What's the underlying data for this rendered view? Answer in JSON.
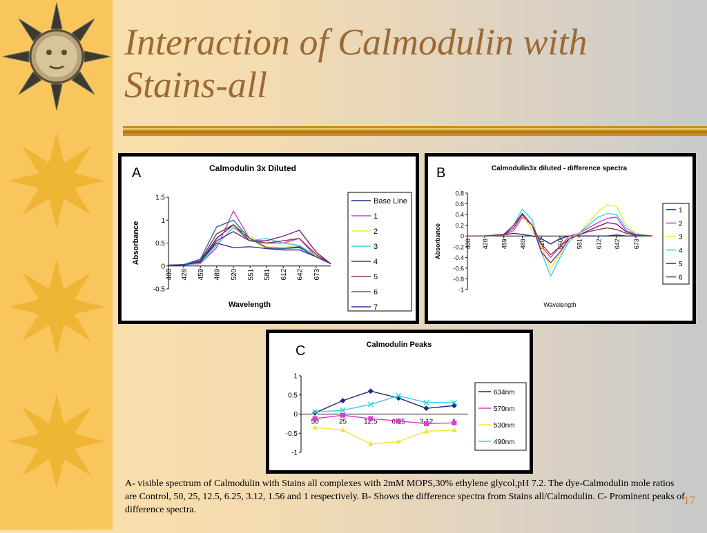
{
  "slide": {
    "title": "Interaction of Calmodulin with Stains-all",
    "caption": "A- visible spectrum of Calmodulin with Stains all complexes with 2mM MOPS,30% ethylene glycol,pH 7.2. The dye-Calmodulin mole ratios are Control, 50, 25, 12.5, 6.25, 3.12, 1.56 and 1 respectively. B- Shows the difference spectra from Stains all/Calmodulin. C- Prominent peaks of difference spectra.",
    "page_number": "17",
    "decoration_icon": "sun-icon"
  },
  "chart_data": [
    {
      "panel": "A",
      "type": "line",
      "title": "Calmodulin 3x Diluted",
      "xlabel": "Wavelength",
      "ylabel": "Absorbance",
      "x": [
        400,
        428,
        459,
        489,
        520,
        550,
        581,
        612,
        642,
        673,
        700
      ],
      "x_tick_labels": [
        "400",
        "428",
        "459",
        "489",
        "520",
        "551",
        "581",
        "612",
        "642",
        "673"
      ],
      "ylim": [
        -0.5,
        1.5
      ],
      "y_ticks": [
        "-0.5",
        "0",
        "0.5",
        "1",
        "1.5"
      ],
      "legend_position": "right",
      "series": [
        {
          "name": "Base Line",
          "color": "#1f2a7a",
          "values": [
            0.02,
            0.03,
            0.1,
            0.6,
            0.9,
            0.6,
            0.4,
            0.38,
            0.42,
            0.2,
            0.05
          ]
        },
        {
          "name": "1",
          "color": "#d03fcf",
          "values": [
            0.01,
            0.03,
            0.05,
            0.4,
            1.2,
            0.6,
            0.5,
            0.5,
            0.6,
            0.2,
            0.05
          ]
        },
        {
          "name": "2",
          "color": "#f2e43a",
          "values": [
            0.01,
            0.02,
            0.08,
            0.5,
            0.82,
            0.65,
            0.42,
            0.4,
            0.45,
            0.22,
            0.05
          ]
        },
        {
          "name": "3",
          "color": "#36d0e6",
          "values": [
            0.01,
            0.02,
            0.06,
            0.45,
            0.85,
            0.55,
            0.6,
            0.5,
            0.45,
            0.2,
            0.05
          ]
        },
        {
          "name": "4",
          "color": "#7d1a8a",
          "values": [
            0.01,
            0.03,
            0.08,
            0.55,
            0.75,
            0.55,
            0.55,
            0.65,
            0.78,
            0.3,
            0.05
          ]
        },
        {
          "name": "5",
          "color": "#8a3a2f",
          "values": [
            0.01,
            0.03,
            0.12,
            0.7,
            0.9,
            0.55,
            0.5,
            0.55,
            0.6,
            0.25,
            0.05
          ]
        },
        {
          "name": "6",
          "color": "#2f6f8f",
          "values": [
            0.01,
            0.03,
            0.15,
            0.85,
            1.0,
            0.6,
            0.4,
            0.38,
            0.4,
            0.2,
            0.05
          ]
        },
        {
          "name": "7",
          "color": "#3c2ca8",
          "values": [
            0.01,
            0.02,
            0.1,
            0.5,
            0.4,
            0.42,
            0.38,
            0.35,
            0.35,
            0.2,
            0.05
          ]
        }
      ]
    },
    {
      "panel": "B",
      "type": "line",
      "title": "Calmodulin3x diluted - difference spectra",
      "xlabel": "Wavelength",
      "ylabel": "Absorbance",
      "x": [
        400,
        428,
        459,
        475,
        489,
        505,
        520,
        535,
        550,
        565,
        581,
        596,
        612,
        627,
        642,
        657,
        673,
        700
      ],
      "x_tick_labels": [
        "400",
        "428",
        "459",
        "489",
        "520",
        "550",
        "581",
        "612",
        "642",
        "673"
      ],
      "ylim": [
        -1,
        0.8
      ],
      "y_ticks": [
        "-1",
        "-0.8",
        "-0.6",
        "-0.4",
        "-0.2",
        "0",
        "0.2",
        "0.4",
        "0.6",
        "0.8"
      ],
      "legend_position": "right",
      "series": [
        {
          "name": "1",
          "color": "#1f2a7a",
          "values": [
            0,
            0,
            0.02,
            0.05,
            0.03,
            0,
            -0.05,
            -0.15,
            -0.05,
            0,
            0,
            0,
            0,
            0,
            0.02,
            0,
            0,
            0
          ]
        },
        {
          "name": "2",
          "color": "#d03fcf",
          "values": [
            0,
            0,
            0.02,
            0.1,
            0.35,
            0.2,
            -0.2,
            -0.4,
            -0.2,
            0,
            0.05,
            0.15,
            0.25,
            0.33,
            0.35,
            0.1,
            0.02,
            0
          ]
        },
        {
          "name": "3",
          "color": "#f2e43a",
          "values": [
            0,
            0,
            0.02,
            0.15,
            0.4,
            0.1,
            -0.2,
            -0.6,
            -0.35,
            -0.05,
            0.05,
            0.25,
            0.45,
            0.58,
            0.55,
            0.2,
            0.05,
            0
          ]
        },
        {
          "name": "4",
          "color": "#36d0e6",
          "values": [
            0,
            0,
            0.03,
            0.2,
            0.5,
            0.3,
            -0.3,
            -0.75,
            -0.4,
            -0.1,
            0.05,
            0.2,
            0.35,
            0.42,
            0.4,
            0.15,
            0.03,
            0
          ]
        },
        {
          "name": "5",
          "color": "#7d1a8a",
          "values": [
            0,
            0,
            0.03,
            0.2,
            0.42,
            0.2,
            -0.3,
            -0.5,
            -0.3,
            -0.05,
            0.02,
            0.1,
            0.18,
            0.25,
            0.22,
            0.08,
            0.02,
            0
          ]
        },
        {
          "name": "6",
          "color": "#8a3a2f",
          "values": [
            0,
            0,
            0.02,
            0.15,
            0.4,
            0.2,
            -0.15,
            -0.35,
            -0.2,
            -0.05,
            0.02,
            0.08,
            0.12,
            0.15,
            0.12,
            0.05,
            0.01,
            0
          ]
        }
      ]
    },
    {
      "panel": "C",
      "type": "line",
      "title": "Calmodulin Peaks",
      "xlabel": "",
      "ylabel": "",
      "categories": [
        "50",
        "25",
        "12.5",
        "6.25",
        "3.12",
        "1"
      ],
      "ylim": [
        -1,
        1
      ],
      "y_ticks": [
        "-1",
        "-0.5",
        "0",
        "0.5",
        "1"
      ],
      "legend_position": "right",
      "series": [
        {
          "name": "634nm",
          "color": "#1f2a7a",
          "marker": "diamond",
          "values": [
            0.03,
            0.35,
            0.6,
            0.42,
            0.15,
            0.22
          ]
        },
        {
          "name": "570nm",
          "color": "#e03ac8",
          "marker": "square",
          "values": [
            -0.12,
            -0.03,
            -0.12,
            -0.18,
            -0.25,
            -0.23
          ]
        },
        {
          "name": "530nm",
          "color": "#f2e43a",
          "marker": "triangle",
          "values": [
            -0.35,
            -0.42,
            -0.78,
            -0.72,
            -0.45,
            -0.42
          ]
        },
        {
          "name": "490nm",
          "color": "#36d0e6",
          "marker": "x",
          "values": [
            0.05,
            0.1,
            0.25,
            0.48,
            0.3,
            0.3
          ]
        }
      ]
    }
  ]
}
